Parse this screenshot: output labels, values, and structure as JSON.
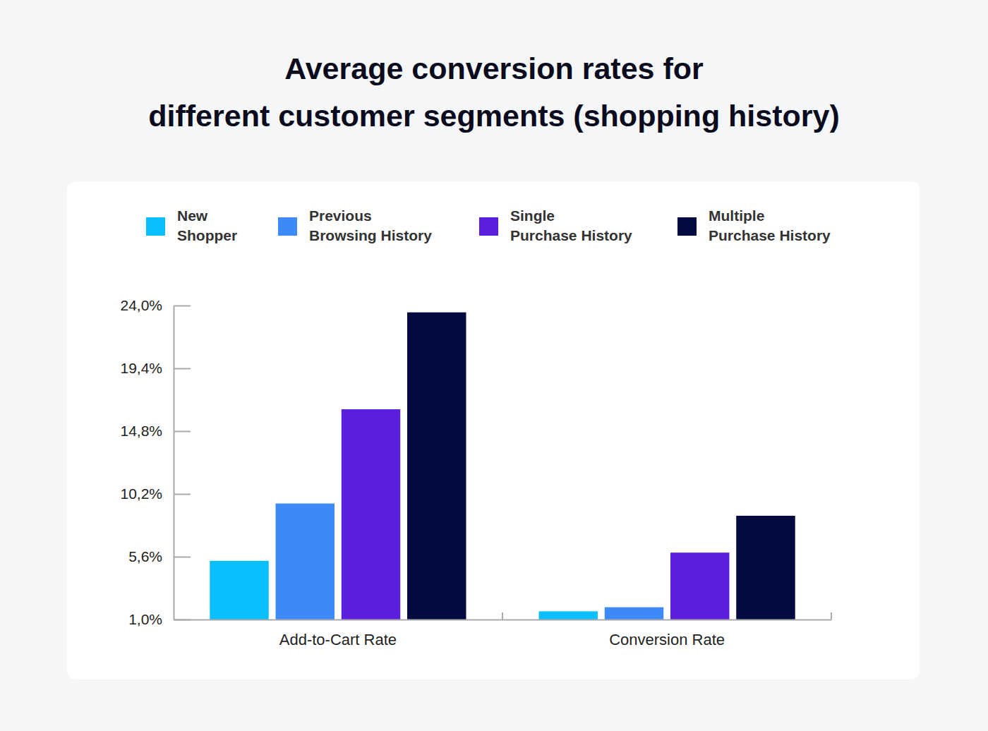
{
  "chart_data": {
    "type": "bar",
    "title": [
      "Average conversion rates for",
      "different customer segments (shopping history)"
    ],
    "categories": [
      "Add-to-Cart Rate",
      "Conversion Rate"
    ],
    "series": [
      {
        "name": "New Shopper",
        "color": "#0bbfff",
        "values": [
          5.3,
          1.6
        ]
      },
      {
        "name": "Previous Browsing History",
        "color": "#3d8af7",
        "values": [
          9.5,
          1.9
        ]
      },
      {
        "name": "Single Purchase History",
        "color": "#5a1fdc",
        "values": [
          16.4,
          5.9
        ]
      },
      {
        "name": "Multiple Purchase History",
        "color": "#020a40",
        "values": [
          23.5,
          8.6
        ]
      }
    ],
    "ylim": [
      1,
      24
    ],
    "yticks": [
      {
        "value": 1,
        "label": "1,0%"
      },
      {
        "value": 5.6,
        "label": "5,6%"
      },
      {
        "value": 10.2,
        "label": "10,2%"
      },
      {
        "value": 14.8,
        "label": "14,8%"
      },
      {
        "value": 19.4,
        "label": "19,4%"
      },
      {
        "value": 24,
        "label": "24,0%"
      }
    ],
    "legend": "top",
    "grid": false
  }
}
